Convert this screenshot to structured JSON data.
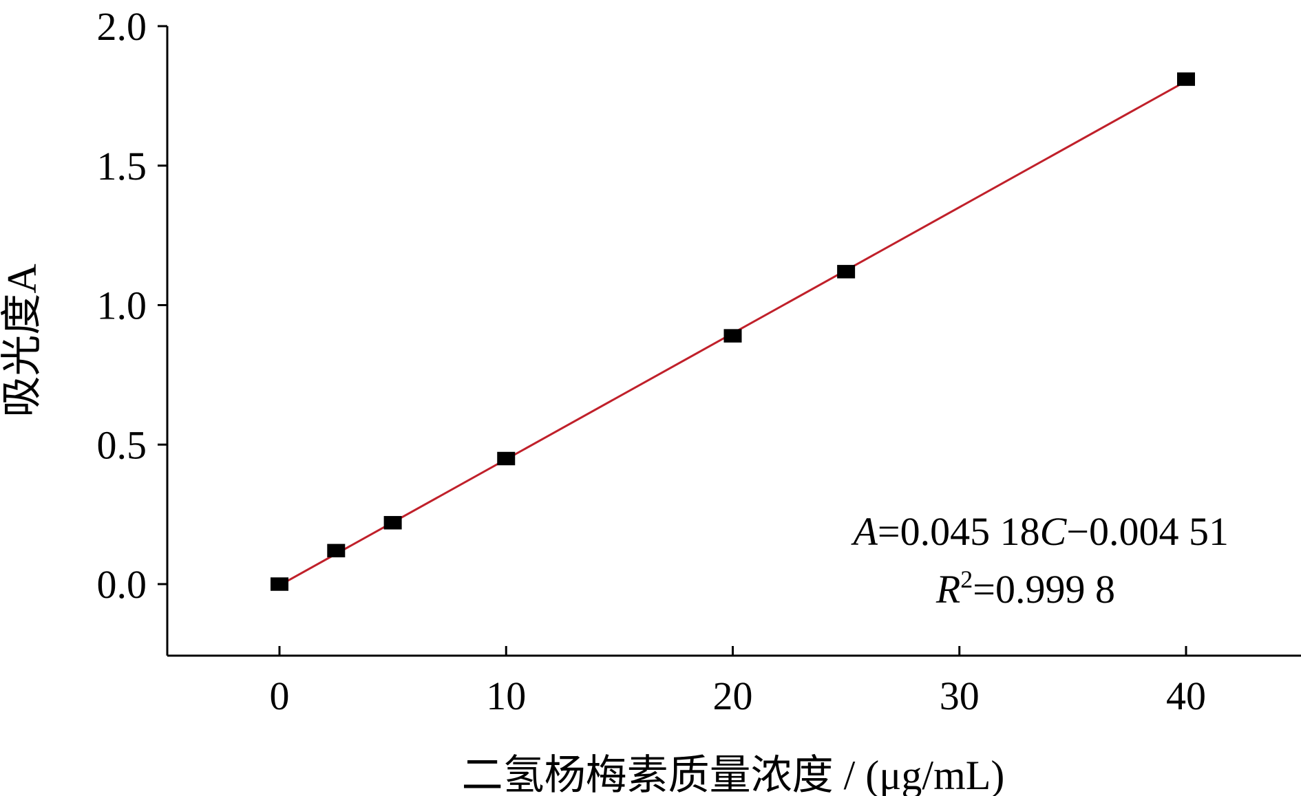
{
  "chart_data": {
    "type": "scatter",
    "title": "",
    "xlabel": "二氢杨梅素质量浓度 / (μg/mL)",
    "ylabel": "吸光度A",
    "xlim": [
      -5,
      45
    ],
    "ylim": [
      -0.25,
      2.0
    ],
    "x_ticks": [
      0,
      10,
      20,
      30,
      40
    ],
    "x_tick_labels": [
      "0",
      "10",
      "20",
      "30",
      "40"
    ],
    "y_ticks": [
      0.0,
      0.5,
      1.0,
      1.5,
      2.0
    ],
    "y_tick_labels": [
      "0.0",
      "0.5",
      "1.0",
      "1.5",
      "2.0"
    ],
    "grid": false,
    "legend": "none",
    "series": [
      {
        "marker": "square",
        "color": "#000000",
        "x": [
          0,
          2.5,
          5,
          10,
          20,
          25,
          40
        ],
        "y": [
          0.0,
          0.12,
          0.22,
          0.45,
          0.89,
          1.12,
          1.81
        ]
      }
    ],
    "fit_line": {
      "color": "#c0202a",
      "slope": 0.04518,
      "intercept": -0.00451,
      "x_range": [
        0,
        40
      ]
    },
    "annotations": {
      "equation": {
        "A": "A",
        "eq1": "=0.045 18",
        "C": "C",
        "eq2": "−0.004 51"
      },
      "r2": {
        "R": "R",
        "sup": "2",
        "val": "=0.999 8"
      }
    }
  }
}
